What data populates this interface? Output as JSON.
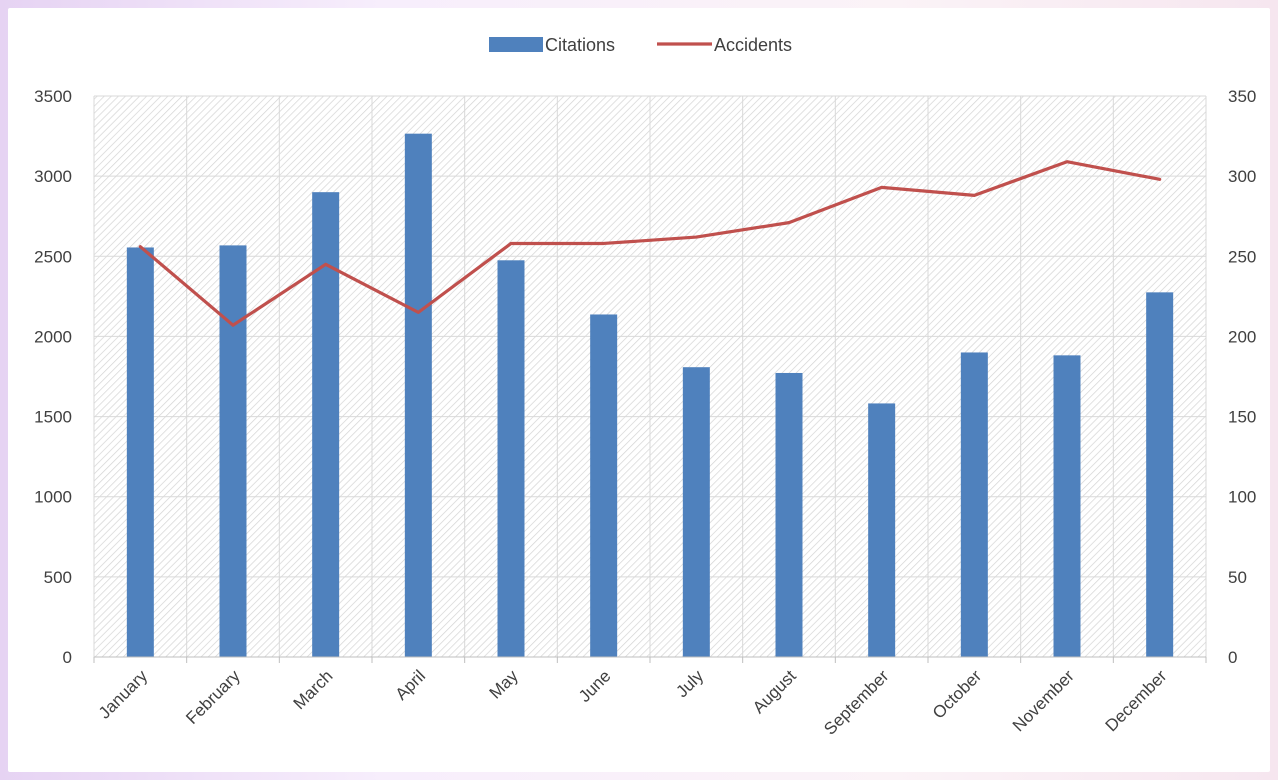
{
  "chart_data": {
    "type": "bar",
    "title": "",
    "xlabel": "",
    "ylabel": "",
    "categories": [
      "January",
      "February",
      "March",
      "April",
      "May",
      "June",
      "July",
      "August",
      "September",
      "October",
      "November",
      "December"
    ],
    "series": [
      {
        "name": "Citations",
        "type": "bar",
        "axis": "left",
        "color": "#4f81bd",
        "values": [
          2555,
          2568,
          2900,
          3265,
          2475,
          2137,
          1808,
          1772,
          1582,
          1900,
          1882,
          2275
        ]
      },
      {
        "name": "Accidents",
        "type": "line",
        "axis": "right",
        "color": "#c0504d",
        "values": [
          256,
          207,
          245,
          215,
          258,
          258,
          262,
          271,
          293,
          288,
          309,
          298
        ]
      }
    ],
    "ylim_left": [
      0,
      3500
    ],
    "yticks_left": [
      "0",
      "500",
      "1000",
      "1500",
      "2000",
      "2500",
      "3000",
      "3500"
    ],
    "ylim_right": [
      0,
      350
    ],
    "yticks_right": [
      "0",
      "50",
      "100",
      "150",
      "200",
      "250",
      "300",
      "350"
    ],
    "grid": true,
    "legend_position": "top-center"
  }
}
